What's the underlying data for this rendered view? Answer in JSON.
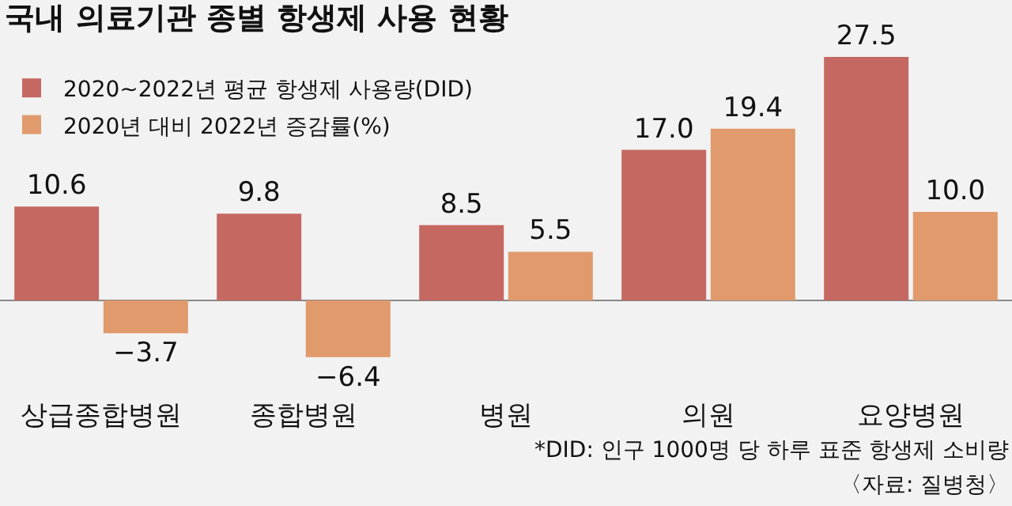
{
  "chart_data": {
    "type": "bar",
    "title": "국내 의료기관 종별 항생제 사용 현황",
    "categories": [
      "상급종합병원",
      "종합병원",
      "병원",
      "의원",
      "요양병원"
    ],
    "series": [
      {
        "name": "2020~2022년 평균 항생제 사용량(DID)",
        "color": "#c56862",
        "values": [
          10.6,
          9.8,
          8.5,
          17.0,
          27.5
        ],
        "value_labels": [
          "10.6",
          "9.8",
          "8.5",
          "17.0",
          "27.5"
        ]
      },
      {
        "name": "2020년 대비 2022년 증감률(%)",
        "color": "#e09a6c",
        "values": [
          -3.7,
          -6.4,
          5.5,
          19.4,
          10.0
        ],
        "value_labels": [
          "−3.7",
          "−6.4",
          "5.5",
          "19.4",
          "10.0"
        ]
      }
    ],
    "legend": "top left",
    "grid": false,
    "annotations": [
      "*DID: 인구 1000명 당 하루 표준 항생제 소비량",
      "〈자료: 질병청〉"
    ]
  }
}
